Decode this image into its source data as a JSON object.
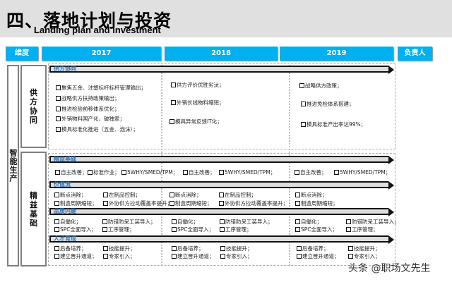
{
  "header": {
    "title": "四、落地计划与投资",
    "subtitle": "Landing plan and investment"
  },
  "columns": [
    "维度",
    "2017",
    "2018",
    "2019",
    "负责人"
  ],
  "left": {
    "category": "智能生产",
    "groups": [
      "供方 协同",
      "精益 基础"
    ]
  },
  "sections": [
    {
      "name": "供方协同",
      "items": {
        "y2017": [
          "聚焦五金、注塑标杆标杆管理输出；",
          "战略供方扶持政策输出；",
          "推进检验前移体系优化；",
          "外销物料国产化、破独家；",
          "模具标准化推进（五金、泡沫）；"
        ],
        "y2018": [
          "供方评价优胜劣汰；",
          "外销长线物料缩短；",
          "模具异常反馈IT化；"
        ],
        "y2019": [
          "战略供方政策；",
          "推进免检体系搭建；",
          "模具标准产出率达99%；"
        ]
      }
    },
    {
      "name": "精益基础",
      "items": {
        "y2017": [
          "自主改善；",
          "标准作业；",
          "5WHY/SMED/TPM；"
        ],
        "y2018": [
          "自主改善；",
          "5WHY/SMED/TPM；"
        ],
        "y2019": [
          "自主改善；",
          "5WHY/SMED/TPM；"
        ]
      }
    },
    {
      "name": "价值流",
      "items": {
        "y2017": [
          "断点消除；",
          "在制品控制；",
          "制造周期缩短；",
          "外协供方拉动覆盖率提升；"
        ],
        "y2018": [
          "断点消除；",
          "在制品控制；",
          "制造周期缩短；",
          "外协供方拉动覆盖率提升；"
        ],
        "y2019": [
          "断点消除；",
          "制造周期缩短；"
        ]
      }
    },
    {
      "name": "品质内建",
      "items": {
        "y2017": [
          "自働化；",
          "防错防呆工装导入；",
          "SPC全面导入；",
          "工序管理；"
        ],
        "y2018": [
          "自働化；",
          "防错防呆工装导入；",
          "SPC全面导入；",
          "工序管理；"
        ],
        "y2019": [
          "自働化；",
          "防错防呆工装导入；",
          "SPC全面导入；",
          "工序管理；"
        ]
      }
    },
    {
      "name": "人才育成",
      "items": {
        "y2017": [
          "后备培养；",
          "技能提升；",
          "建立晋升通道；",
          "专家引入；"
        ],
        "y2018": [
          "后备培养；",
          "技能提升；",
          "建立晋升通道；",
          "专家引入；"
        ],
        "y2019": [
          "后备培养；",
          "技能提升；",
          "建立晋升通道；",
          "专家引入；"
        ]
      }
    }
  ],
  "watermark": "头条 @职场文先生",
  "colors": {
    "accent": "#00b0f0",
    "banner_text": "#2e74b5"
  }
}
